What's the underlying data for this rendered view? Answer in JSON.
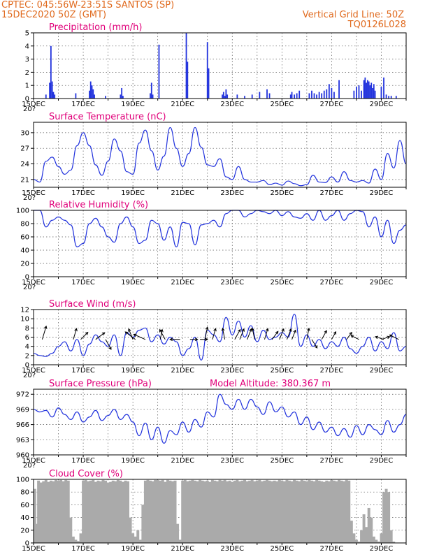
{
  "header": {
    "line1_left": "CPTEC:   045:56W-23:51S   SANTOS (SP)",
    "line2_left": "15DEC2020 50Z (GMT)",
    "line1_right": "Vertical Grid Line: 50Z",
    "line2_right": "TQ0126L028"
  },
  "colors": {
    "header": "#e06a1e",
    "title": "#e0007a",
    "series": "#2233dd",
    "cloud": "#aaaaaa"
  },
  "x_labels": [
    "15DEC",
    "17DEC",
    "19DEC",
    "21DEC",
    "23DEC",
    "25DEC",
    "27DEC",
    "29DEC"
  ],
  "x_stub": "20?",
  "chart_data": [
    {
      "type": "bar",
      "title": "Precipitation (mm/h)",
      "ylim": [
        0,
        5
      ],
      "yticks": [
        "0",
        "1",
        "2",
        "3",
        "4",
        "5"
      ],
      "x_range_days": [
        0,
        15
      ],
      "x": [
        0.5,
        0.65,
        0.7,
        0.75,
        0.8,
        0.85,
        1.7,
        2.25,
        2.3,
        2.35,
        2.4,
        2.45,
        2.9,
        3.5,
        3.55,
        3.6,
        4.7,
        4.75,
        4.8,
        5.05,
        6.15,
        6.2,
        7.0,
        7.05,
        7.6,
        7.65,
        7.7,
        7.75,
        7.8,
        8.2,
        8.5,
        8.8,
        9.1,
        9.4,
        9.5,
        10.35,
        10.4,
        10.5,
        10.6,
        10.7,
        11.1,
        11.2,
        11.3,
        11.4,
        11.5,
        11.6,
        11.7,
        11.8,
        11.9,
        12.0,
        12.1,
        12.3,
        12.9,
        13.0,
        13.1,
        13.2,
        13.3,
        13.35,
        13.4,
        13.45,
        13.5,
        13.55,
        13.6,
        13.65,
        13.7,
        13.75,
        14.0,
        14.1,
        14.2,
        14.3,
        14.4,
        14.6
      ],
      "values": [
        0.3,
        1.2,
        4.0,
        1.3,
        0.5,
        0.3,
        0.4,
        0.6,
        1.3,
        1.0,
        0.7,
        0.3,
        0.2,
        0.3,
        0.8,
        0.2,
        0.4,
        1.2,
        0.3,
        4.1,
        5.0,
        2.8,
        4.3,
        2.3,
        0.3,
        0.5,
        0.2,
        0.7,
        0.3,
        0.3,
        0.2,
        0.3,
        0.5,
        0.7,
        0.4,
        0.3,
        0.5,
        0.3,
        0.4,
        0.6,
        0.4,
        0.6,
        0.4,
        0.3,
        0.5,
        0.4,
        0.6,
        0.7,
        1.1,
        0.8,
        0.5,
        1.4,
        0.6,
        0.9,
        1.0,
        0.6,
        1.4,
        1.6,
        1.2,
        1.4,
        1.3,
        1.0,
        1.2,
        0.8,
        1.1,
        0.6,
        0.9,
        1.6,
        0.3,
        0.2,
        0.2,
        0.2
      ]
    },
    {
      "type": "line",
      "title": "Surface Temperature (nC)",
      "ylim": [
        19.5,
        32
      ],
      "yticks": [
        "21",
        "24",
        "27",
        "30"
      ],
      "ytick_values": [
        21,
        24,
        27,
        30
      ],
      "x": [
        0,
        0.25,
        0.5,
        0.75,
        1.0,
        1.25,
        1.5,
        1.75,
        2.0,
        2.25,
        2.5,
        2.75,
        3.0,
        3.25,
        3.5,
        3.75,
        4.0,
        4.25,
        4.5,
        4.75,
        5.0,
        5.25,
        5.5,
        5.75,
        6.0,
        6.25,
        6.5,
        6.75,
        7.0,
        7.25,
        7.5,
        7.75,
        8.0,
        8.25,
        8.5,
        8.75,
        9.0,
        9.25,
        9.5,
        9.75,
        10.0,
        10.25,
        10.5,
        10.75,
        11.0,
        11.25,
        11.5,
        11.75,
        12.0,
        12.25,
        12.5,
        12.75,
        13.0,
        13.25,
        13.5,
        13.75,
        14.0,
        14.25,
        14.5,
        14.75,
        15.0
      ],
      "values": [
        21.0,
        20.5,
        24.5,
        25.3,
        23.5,
        22.0,
        22.8,
        27.5,
        30.0,
        27.5,
        23.8,
        21.8,
        24.5,
        28.8,
        26.5,
        22.5,
        22.0,
        28.0,
        30.5,
        26.5,
        22.8,
        25.5,
        31.0,
        27.0,
        23.5,
        26.0,
        31.0,
        27.2,
        23.8,
        23.5,
        25.0,
        21.5,
        21.0,
        23.5,
        21.0,
        20.5,
        20.5,
        20.8,
        20.0,
        20.3,
        19.9,
        20.7,
        20.2,
        19.8,
        20.0,
        21.8,
        20.5,
        20.4,
        21.5,
        20.5,
        22.5,
        20.8,
        20.5,
        20.8,
        20.3,
        23.0,
        21.0,
        26.0,
        23.2,
        28.5,
        24.0
      ]
    },
    {
      "type": "line",
      "title": "Relative Humidity (%)",
      "ylim": [
        0,
        100
      ],
      "yticks": [
        "0",
        "20",
        "40",
        "60",
        "80",
        "100"
      ],
      "ytick_values": [
        0,
        20,
        40,
        60,
        80,
        100
      ],
      "x": [
        0,
        0.25,
        0.5,
        0.75,
        1.0,
        1.25,
        1.5,
        1.75,
        2.0,
        2.25,
        2.5,
        2.75,
        3.0,
        3.25,
        3.5,
        3.75,
        4.0,
        4.25,
        4.5,
        4.75,
        5.0,
        5.25,
        5.5,
        5.75,
        6.0,
        6.25,
        6.5,
        6.75,
        7.0,
        7.25,
        7.5,
        7.75,
        8.0,
        8.25,
        8.5,
        8.75,
        9.0,
        9.25,
        9.5,
        9.75,
        10.0,
        10.25,
        10.5,
        10.75,
        11.0,
        11.25,
        11.5,
        11.75,
        12.0,
        12.25,
        12.5,
        12.75,
        13.0,
        13.25,
        13.5,
        13.75,
        14.0,
        14.25,
        14.5,
        14.75,
        15.0
      ],
      "values": [
        100,
        100,
        75,
        85,
        90,
        85,
        78,
        45,
        50,
        80,
        88,
        75,
        60,
        52,
        80,
        90,
        75,
        50,
        55,
        85,
        80,
        55,
        75,
        45,
        82,
        80,
        48,
        78,
        80,
        85,
        75,
        95,
        100,
        100,
        90,
        95,
        100,
        98,
        95,
        100,
        92,
        98,
        90,
        88,
        95,
        85,
        100,
        85,
        92,
        100,
        85,
        95,
        100,
        98,
        75,
        90,
        60,
        85,
        50,
        70,
        78
      ]
    },
    {
      "type": "line",
      "title": "Surface Wind (m/s)",
      "ylim": [
        0,
        12
      ],
      "yticks": [
        "0",
        "2",
        "4",
        "6",
        "8",
        "10",
        "12"
      ],
      "ytick_values": [
        0,
        2,
        4,
        6,
        8,
        10,
        12
      ],
      "x": [
        0,
        0.25,
        0.5,
        0.75,
        1.0,
        1.25,
        1.5,
        1.75,
        2.0,
        2.25,
        2.5,
        2.75,
        3.0,
        3.25,
        3.5,
        3.75,
        4.0,
        4.25,
        4.5,
        4.75,
        5.0,
        5.25,
        5.5,
        5.75,
        6.0,
        6.25,
        6.5,
        6.75,
        7.0,
        7.25,
        7.5,
        7.75,
        8.0,
        8.25,
        8.5,
        8.75,
        9.0,
        9.25,
        9.5,
        9.75,
        10.0,
        10.25,
        10.5,
        10.75,
        11.0,
        11.25,
        11.5,
        11.75,
        12.0,
        12.25,
        12.5,
        12.75,
        13.0,
        13.25,
        13.5,
        13.75,
        14.0,
        14.25,
        14.5,
        14.75,
        15.0
      ],
      "values": [
        2.5,
        2.0,
        1.8,
        2.5,
        4.0,
        5.0,
        3.0,
        5.5,
        2.0,
        4.5,
        6.5,
        5.0,
        4.0,
        6.5,
        2.0,
        7.0,
        6.0,
        7.5,
        8.0,
        5.0,
        6.5,
        4.5,
        6.0,
        5.0,
        2.0,
        3.5,
        6.0,
        1.0,
        7.5,
        6.5,
        5.0,
        10.3,
        6.5,
        9.5,
        6.0,
        8.5,
        5.0,
        7.5,
        5.5,
        6.0,
        7.0,
        6.0,
        11.0,
        4.0,
        6.5,
        4.0,
        5.5,
        3.5,
        5.0,
        4.0,
        6.0,
        3.5,
        2.5,
        4.0,
        6.0,
        3.0,
        5.0,
        3.5,
        7.0,
        3.0,
        4.0
      ],
      "vectors": [
        {
          "x": 0.35,
          "dir": [
            0.3,
            -1
          ],
          "len": 2.2
        },
        {
          "x": 1.6,
          "dir": [
            0.3,
            -1
          ],
          "len": 1.8
        },
        {
          "x": 1.9,
          "dir": [
            0.7,
            -0.7
          ],
          "len": 1.6
        },
        {
          "x": 2.5,
          "dir": [
            0.8,
            -0.6
          ],
          "len": 1.8
        },
        {
          "x": 2.9,
          "dir": [
            0.5,
            0.9
          ],
          "len": 1.8
        },
        {
          "x": 4.0,
          "dir": [
            -0.4,
            -1
          ],
          "len": 1.8
        },
        {
          "x": 4.1,
          "dir": [
            -0.8,
            -0.6
          ],
          "len": 2.0
        },
        {
          "x": 4.5,
          "dir": [
            -0.9,
            -0.4
          ],
          "len": 2.0
        },
        {
          "x": 5.1,
          "dir": [
            0.2,
            -1
          ],
          "len": 1.6
        },
        {
          "x": 5.3,
          "dir": [
            -0.5,
            -0.9
          ],
          "len": 1.8
        },
        {
          "x": 5.9,
          "dir": [
            -1,
            0
          ],
          "len": 1.6
        },
        {
          "x": 6.3,
          "dir": [
            0.8,
            0
          ],
          "len": 1.2
        },
        {
          "x": 6.7,
          "dir": [
            0.8,
            0
          ],
          "len": 1.2
        },
        {
          "x": 6.9,
          "dir": [
            0.2,
            -1
          ],
          "len": 2.0
        },
        {
          "x": 7.2,
          "dir": [
            0.3,
            -1
          ],
          "len": 1.8
        },
        {
          "x": 7.7,
          "dir": [
            -0.2,
            -1
          ],
          "len": 1.8
        },
        {
          "x": 8.1,
          "dir": [
            0.5,
            -0.9
          ],
          "len": 1.8
        },
        {
          "x": 8.3,
          "dir": [
            0.4,
            -1
          ],
          "len": 1.8
        },
        {
          "x": 8.6,
          "dir": [
            0.4,
            -1
          ],
          "len": 1.8
        },
        {
          "x": 8.9,
          "dir": [
            -0.2,
            -1
          ],
          "len": 1.8
        },
        {
          "x": 9.3,
          "dir": [
            0.3,
            -1
          ],
          "len": 1.8
        },
        {
          "x": 9.6,
          "dir": [
            0.6,
            -0.8
          ],
          "len": 1.6
        },
        {
          "x": 9.9,
          "dir": [
            0.4,
            -1
          ],
          "len": 1.8
        },
        {
          "x": 10.2,
          "dir": [
            0.4,
            -1
          ],
          "len": 1.8
        },
        {
          "x": 10.4,
          "dir": [
            0.4,
            -1
          ],
          "len": 1.6
        },
        {
          "x": 11.0,
          "dir": [
            0.2,
            -1
          ],
          "len": 1.8
        },
        {
          "x": 11.2,
          "dir": [
            0.5,
            0.8
          ],
          "len": 1.6
        },
        {
          "x": 11.6,
          "dir": [
            0.5,
            -0.9
          ],
          "len": 1.6
        },
        {
          "x": 12.0,
          "dir": [
            0.5,
            -0.9
          ],
          "len": 1.4
        },
        {
          "x": 12.6,
          "dir": [
            0.6,
            -0.8
          ],
          "len": 1.4
        },
        {
          "x": 13.1,
          "dir": [
            -0.8,
            -0.4
          ],
          "len": 1.4
        },
        {
          "x": 14.0,
          "dir": [
            0.9,
            -0.3
          ],
          "len": 1.4
        },
        {
          "x": 14.1,
          "dir": [
            -0.9,
            -0.3
          ],
          "len": 1.4
        },
        {
          "x": 14.7,
          "dir": [
            -0.8,
            -0.4
          ],
          "len": 1.6
        }
      ]
    },
    {
      "type": "line",
      "title": "Surface Pressure (hPa)",
      "annotation": "Model Altitude: 380.367 m",
      "ylim": [
        960,
        973
      ],
      "yticks": [
        "960",
        "963",
        "966",
        "969",
        "972"
      ],
      "ytick_values": [
        960,
        963,
        966,
        969,
        972
      ],
      "x": [
        0,
        0.25,
        0.5,
        0.75,
        1.0,
        1.25,
        1.5,
        1.75,
        2.0,
        2.25,
        2.5,
        2.75,
        3.0,
        3.25,
        3.5,
        3.75,
        4.0,
        4.25,
        4.5,
        4.75,
        5.0,
        5.25,
        5.5,
        5.75,
        6.0,
        6.25,
        6.5,
        6.75,
        7.0,
        7.25,
        7.5,
        7.75,
        8.0,
        8.25,
        8.5,
        8.75,
        9.0,
        9.25,
        9.5,
        9.75,
        10.0,
        10.25,
        10.5,
        10.75,
        11.0,
        11.25,
        11.5,
        11.75,
        12.0,
        12.25,
        12.5,
        12.75,
        13.0,
        13.25,
        13.5,
        13.75,
        14.0,
        14.25,
        14.5,
        14.75,
        15.0
      ],
      "values": [
        969.0,
        968.5,
        968.8,
        967.5,
        969.3,
        968.0,
        967.0,
        968.5,
        966.5,
        967.5,
        968.8,
        966.8,
        967.8,
        969.0,
        967.0,
        968.0,
        966.5,
        963.8,
        966.3,
        963.0,
        965.5,
        962.3,
        964.8,
        964.0,
        966.5,
        964.5,
        967.0,
        965.5,
        968.5,
        967.5,
        972.0,
        970.0,
        969.0,
        971.0,
        969.0,
        971.0,
        969.5,
        968.0,
        970.5,
        968.5,
        969.5,
        967.5,
        968.5,
        966.0,
        967.5,
        965.0,
        966.5,
        964.5,
        965.5,
        963.8,
        965.2,
        963.5,
        965.8,
        964.0,
        966.0,
        965.0,
        964.0,
        966.8,
        964.5,
        966.0,
        968.0
      ]
    },
    {
      "type": "area",
      "title": "Cloud Cover (%)",
      "ylim": [
        0,
        100
      ],
      "yticks": [
        "0",
        "20",
        "40",
        "60",
        "80",
        "100"
      ],
      "ytick_values": [
        0,
        20,
        40,
        60,
        80,
        100
      ],
      "x": [
        0.05,
        0.1,
        0.2,
        0.3,
        0.4,
        0.5,
        0.6,
        0.7,
        0.8,
        0.9,
        1.0,
        1.1,
        1.2,
        1.3,
        1.4,
        1.5,
        1.6,
        1.7,
        1.8,
        1.9,
        2.0,
        2.1,
        2.2,
        2.3,
        2.4,
        2.5,
        2.6,
        2.7,
        2.8,
        2.9,
        3.0,
        3.1,
        3.2,
        3.3,
        3.4,
        3.5,
        3.6,
        3.7,
        3.8,
        3.9,
        4.0,
        4.1,
        4.2,
        4.3,
        4.4,
        4.5,
        4.6,
        4.7,
        4.8,
        4.9,
        5.0,
        5.1,
        5.2,
        5.3,
        5.4,
        5.5,
        5.6,
        5.7,
        5.8,
        5.9,
        6.0,
        6.1,
        6.2,
        6.3,
        6.4,
        6.5,
        6.6,
        6.7,
        6.8,
        6.9,
        7.0,
        7.1,
        7.2,
        7.3,
        7.4,
        7.5,
        7.6,
        7.7,
        7.8,
        7.9,
        8.0,
        8.1,
        8.2,
        8.3,
        8.4,
        8.5,
        8.6,
        8.7,
        8.8,
        8.9,
        9.0,
        9.1,
        9.2,
        9.3,
        9.4,
        9.5,
        9.6,
        9.7,
        9.8,
        9.9,
        10.0,
        10.1,
        10.2,
        10.3,
        10.4,
        10.5,
        10.6,
        10.7,
        10.8,
        10.9,
        11.0,
        11.1,
        11.2,
        11.3,
        11.4,
        11.5,
        11.6,
        11.7,
        11.8,
        11.9,
        12.0,
        12.1,
        12.2,
        12.3,
        12.4,
        12.5,
        12.6,
        12.7,
        12.8,
        12.9,
        13.0,
        13.1,
        13.2,
        13.3,
        13.4,
        13.5,
        13.6,
        13.7,
        13.8,
        13.9,
        14.0,
        14.1,
        14.2,
        14.3,
        14.4,
        14.5,
        14.6,
        14.7,
        14.8,
        14.9
      ],
      "values": [
        85,
        30,
        98,
        95,
        97,
        99,
        96,
        98,
        97,
        99,
        98,
        99,
        97,
        99,
        98,
        40,
        10,
        5,
        3,
        15,
        98,
        99,
        97,
        98,
        99,
        96,
        98,
        97,
        99,
        98,
        95,
        96,
        98,
        97,
        99,
        98,
        96,
        98,
        97,
        40,
        15,
        10,
        20,
        5,
        60,
        98,
        99,
        98,
        97,
        99,
        99,
        98,
        99,
        96,
        99,
        98,
        97,
        98,
        30,
        5,
        98,
        99,
        97,
        98,
        99,
        98,
        97,
        99,
        98,
        97,
        98,
        96,
        99,
        98,
        97,
        99,
        98,
        99,
        97,
        98,
        96,
        98,
        99,
        97,
        98,
        99,
        97,
        98,
        99,
        97,
        98,
        99,
        97,
        98,
        99,
        98,
        97,
        98,
        97,
        99,
        98,
        97,
        99,
        98,
        97,
        99,
        98,
        97,
        99,
        98,
        97,
        99,
        98,
        97,
        99,
        98,
        97,
        96,
        98,
        97,
        99,
        98,
        97,
        99,
        98,
        97,
        99,
        98,
        35,
        15,
        5,
        2,
        20,
        45,
        25,
        55,
        40,
        10,
        5,
        2,
        15,
        80,
        85,
        80,
        20,
        2,
        0,
        0,
        0,
        0
      ]
    }
  ]
}
